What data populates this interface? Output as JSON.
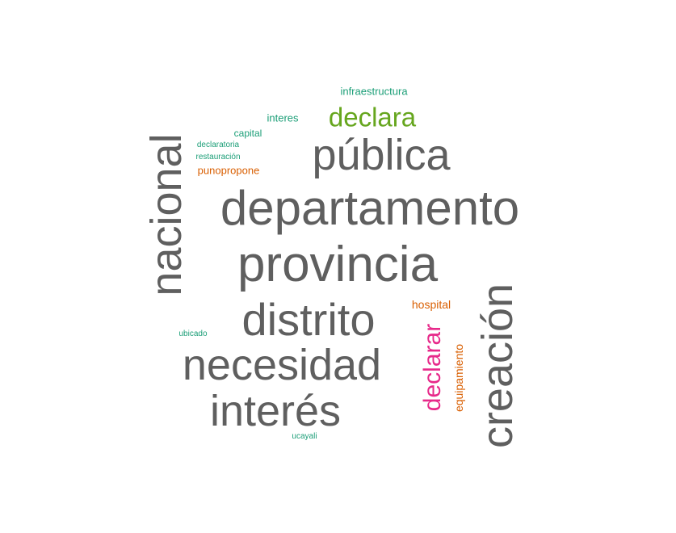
{
  "colors": {
    "gray": "#5f5f5f",
    "green": "#1b9e77",
    "orange": "#d95f02",
    "lime": "#66a61e",
    "magenta": "#e7298a"
  },
  "words": [
    {
      "id": "departamento",
      "text": "departamento",
      "color": "gray"
    },
    {
      "id": "provincia",
      "text": "provincia",
      "color": "gray"
    },
    {
      "id": "publica",
      "text": "pública",
      "color": "gray"
    },
    {
      "id": "distrito",
      "text": "distrito",
      "color": "gray"
    },
    {
      "id": "necesidad",
      "text": "necesidad",
      "color": "gray"
    },
    {
      "id": "interes-big",
      "text": "interés",
      "color": "gray"
    },
    {
      "id": "nacional",
      "text": "nacional",
      "color": "gray"
    },
    {
      "id": "creacion",
      "text": "creación",
      "color": "gray"
    },
    {
      "id": "declara",
      "text": "declara",
      "color": "lime"
    },
    {
      "id": "declarar",
      "text": "declarar",
      "color": "magenta"
    },
    {
      "id": "equipamiento",
      "text": "equipamiento",
      "color": "orange"
    },
    {
      "id": "hospital",
      "text": "hospital",
      "color": "orange"
    },
    {
      "id": "punopropone",
      "text": "punopropone",
      "color": "orange"
    },
    {
      "id": "infraestructura",
      "text": "infraestructura",
      "color": "green"
    },
    {
      "id": "interes-small",
      "text": "interes",
      "color": "green"
    },
    {
      "id": "capital",
      "text": "capital",
      "color": "green"
    },
    {
      "id": "declaratoria",
      "text": "declaratoria",
      "color": "green"
    },
    {
      "id": "restauracion",
      "text": "restauración",
      "color": "green"
    },
    {
      "id": "ubicado",
      "text": "ubicado",
      "color": "green"
    },
    {
      "id": "ucayali",
      "text": "ucayali",
      "color": "green"
    }
  ]
}
